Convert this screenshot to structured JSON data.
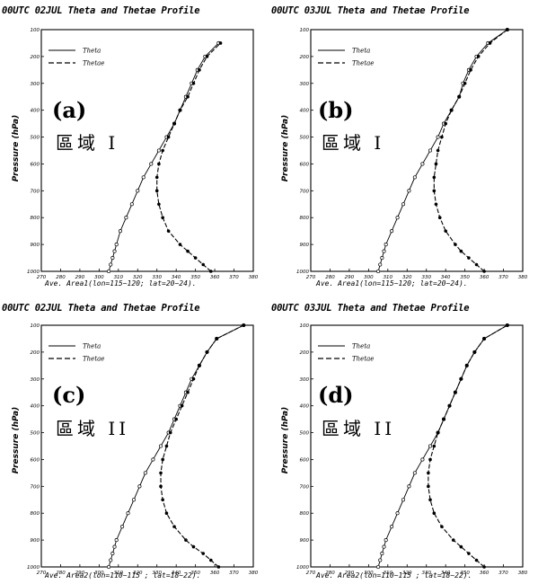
{
  "chart_data": [
    {
      "type": "line",
      "title": "00UTC 02JUL Theta and Thetae Profile",
      "ylabel": "Pressure (hPa)",
      "footnote": "Ave. Area1(lon=115~120; lat=20~24).",
      "panel_label": "(a)",
      "region_label": "區域 I",
      "xlim": [
        270,
        380
      ],
      "ylim": [
        1000,
        100
      ],
      "x_ticks": [
        "270",
        "280",
        "290",
        "300",
        "310",
        "320",
        "330",
        "340",
        "350",
        "360",
        "370",
        "380"
      ],
      "y_ticks": [
        "100",
        "200",
        "300",
        "400",
        "500",
        "600",
        "700",
        "800",
        "900",
        "1000"
      ],
      "legend": [
        "Theta",
        "Thetae"
      ],
      "y": [
        1000,
        975,
        950,
        925,
        900,
        850,
        800,
        750,
        700,
        650,
        600,
        550,
        500,
        450,
        400,
        350,
        300,
        250,
        200,
        150
      ],
      "series": [
        {
          "name": "Theta",
          "values": [
            305,
            306,
            307,
            308,
            309,
            311,
            314,
            317,
            320,
            323,
            327,
            331,
            335,
            339,
            342,
            345,
            348,
            351,
            355,
            362
          ]
        },
        {
          "name": "Thetae",
          "values": [
            358,
            354,
            350,
            346,
            342,
            336,
            333,
            331,
            330,
            330,
            331,
            333,
            336,
            339,
            342,
            346,
            349,
            352,
            356,
            363
          ]
        }
      ]
    },
    {
      "type": "line",
      "title": "00UTC 03JUL Theta and Thetae Profile",
      "ylabel": "Pressure (hPa)",
      "footnote": "Ave. Area1(lon=115~120; lat=20~24).",
      "panel_label": "(b)",
      "region_label": "區域 I",
      "xlim": [
        270,
        380
      ],
      "ylim": [
        1000,
        100
      ],
      "x_ticks": [
        "270",
        "280",
        "290",
        "300",
        "310",
        "320",
        "330",
        "340",
        "350",
        "360",
        "370",
        "380"
      ],
      "y_ticks": [
        "100",
        "200",
        "300",
        "400",
        "500",
        "600",
        "700",
        "800",
        "900",
        "1000"
      ],
      "legend": [
        "Theta",
        "Thetae"
      ],
      "y": [
        1000,
        975,
        950,
        925,
        900,
        850,
        800,
        750,
        700,
        650,
        600,
        550,
        500,
        450,
        400,
        350,
        300,
        250,
        200,
        150,
        100
      ],
      "series": [
        {
          "name": "Theta",
          "values": [
            305,
            306,
            307,
            308,
            309,
            312,
            315,
            318,
            321,
            324,
            328,
            332,
            336,
            339,
            343,
            347,
            349,
            352,
            356,
            362,
            372
          ]
        },
        {
          "name": "Thetae",
          "values": [
            360,
            356,
            352,
            348,
            345,
            340,
            337,
            335,
            334,
            334,
            335,
            336,
            338,
            340,
            343,
            347,
            350,
            353,
            357,
            363,
            372
          ]
        }
      ]
    },
    {
      "type": "line",
      "title": "00UTC 02JUL Theta and Thetae Profile",
      "ylabel": "Pressure (hPa)",
      "footnote": "Ave. Area2(lon=110~115 ; lat=18~22).",
      "panel_label": "(c)",
      "region_label": "區域 II",
      "xlim": [
        270,
        380
      ],
      "ylim": [
        1000,
        100
      ],
      "x_ticks": [
        "270",
        "280",
        "290",
        "300",
        "310",
        "320",
        "330",
        "340",
        "350",
        "360",
        "370",
        "380"
      ],
      "y_ticks": [
        "100",
        "200",
        "300",
        "400",
        "500",
        "600",
        "700",
        "800",
        "900",
        "1000"
      ],
      "legend": [
        "Theta",
        "Thetae"
      ],
      "y": [
        1000,
        975,
        950,
        925,
        900,
        850,
        800,
        750,
        700,
        650,
        600,
        550,
        500,
        450,
        400,
        350,
        300,
        250,
        200,
        150,
        100
      ],
      "series": [
        {
          "name": "Theta",
          "values": [
            305,
            306,
            307,
            308,
            309,
            312,
            315,
            318,
            321,
            324,
            328,
            332,
            336,
            339,
            342,
            345,
            348,
            352,
            356,
            361,
            375
          ]
        },
        {
          "name": "Thetae",
          "values": [
            362,
            358,
            354,
            349,
            345,
            339,
            335,
            333,
            332,
            332,
            333,
            335,
            337,
            340,
            343,
            346,
            349,
            352,
            356,
            361,
            375
          ]
        }
      ]
    },
    {
      "type": "line",
      "title": "00UTC 03JUL Theta and Thetae Profile",
      "ylabel": "Pressure (hPa)",
      "footnote": "Ave. Area2(lon=110~115 ; lat=18~22).",
      "panel_label": "(d)",
      "region_label": "區域 II",
      "xlim": [
        270,
        380
      ],
      "ylim": [
        1000,
        100
      ],
      "x_ticks": [
        "270",
        "280",
        "290",
        "300",
        "310",
        "320",
        "330",
        "340",
        "350",
        "360",
        "370",
        "380"
      ],
      "y_ticks": [
        "100",
        "200",
        "300",
        "400",
        "500",
        "600",
        "700",
        "800",
        "900",
        "1000"
      ],
      "legend": [
        "Theta",
        "Thetae"
      ],
      "y": [
        1000,
        975,
        950,
        925,
        900,
        850,
        800,
        750,
        700,
        650,
        600,
        550,
        500,
        450,
        400,
        350,
        300,
        250,
        200,
        150,
        100
      ],
      "series": [
        {
          "name": "Theta",
          "values": [
            305,
            306,
            307,
            308,
            309,
            312,
            315,
            318,
            321,
            324,
            328,
            332,
            336,
            339,
            342,
            345,
            348,
            351,
            355,
            360,
            372
          ]
        },
        {
          "name": "Thetae",
          "values": [
            360,
            356,
            352,
            348,
            344,
            338,
            334,
            332,
            331,
            331,
            332,
            334,
            336,
            339,
            342,
            345,
            348,
            351,
            355,
            360,
            372
          ]
        }
      ]
    }
  ]
}
